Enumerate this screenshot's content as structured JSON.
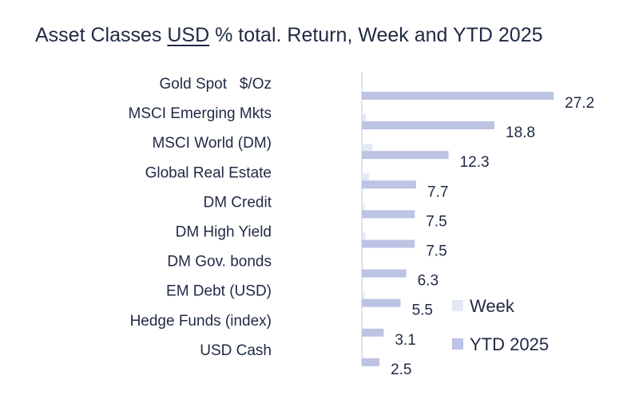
{
  "title": {
    "prefix": "Asset Classes ",
    "underlined": "USD",
    "suffix": " % total. Return, Week and YTD 2025"
  },
  "chart_data": {
    "type": "bar",
    "orientation": "horizontal",
    "title": "Asset Classes USD % total. Return, Week and YTD 2025",
    "categories": [
      "Gold Spot   $/Oz",
      "MSCI Emerging Mkts",
      "MSCI World (DM)",
      "Global Real Estate",
      "DM Credit",
      "DM High Yield",
      "DM Gov. bonds",
      "EM Debt (USD)",
      "Hedge Funds (index)",
      "USD Cash"
    ],
    "series": [
      {
        "name": "Week",
        "color": "#e3e8f7",
        "values": [
          0.1,
          0.6,
          1.5,
          1.0,
          0.4,
          0.5,
          0.2,
          0.4,
          0.1,
          0.1
        ]
      },
      {
        "name": "YTD 2025",
        "color": "#bcc3e3",
        "values": [
          27.2,
          18.8,
          12.3,
          7.7,
          7.5,
          7.5,
          6.3,
          5.5,
          3.1,
          2.5
        ]
      }
    ],
    "data_labels": [
      "27.2",
      "18.8",
      "12.3",
      "7.7",
      "7.5",
      "7.5",
      "6.3",
      "5.5",
      "3.1",
      "2.5"
    ],
    "xlim": [
      0,
      28
    ],
    "grid": false,
    "legend": "bottom-right",
    "axis_line_color": "#d5d9e8"
  }
}
